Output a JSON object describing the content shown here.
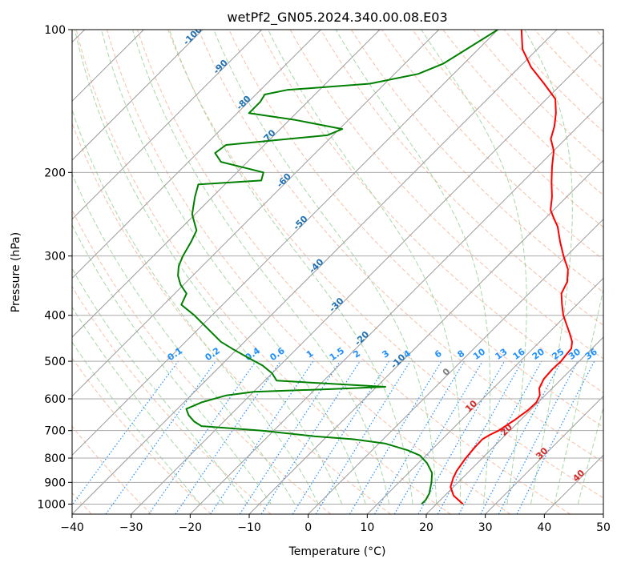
{
  "chart_data": {
    "type": "line",
    "subtype": "skew-t log-p diagram",
    "title": "wetPf2_GN05.2024.340.00.08.E03",
    "xlabel": "Temperature (°C)",
    "ylabel": "Pressure (hPa)",
    "xlim": [
      -40,
      50
    ],
    "ylim": [
      1050,
      100
    ],
    "y_scale": "log",
    "grid": true,
    "x_ticks": [
      -40,
      -30,
      -20,
      -10,
      0,
      10,
      20,
      30,
      40,
      50
    ],
    "y_ticks": [
      1000,
      900,
      800,
      700,
      600,
      500,
      400,
      300,
      200,
      100
    ],
    "colors": {
      "temperature": "#ff0000",
      "dewpoint": "#008000",
      "dry_adiabats": "#f4a582",
      "moist_adiabats": "#98d198",
      "mixing_ratio": "#1e90ff",
      "isotherms": "#9a9a9a",
      "isobars": "#a9a9a9",
      "isotherm_labels": "#1f6fb4",
      "mixing_ratio_labels": "#1e90ff",
      "zero_label": "#7f7f7f",
      "warm_labels": "#d62728"
    },
    "series": [
      {
        "name": "",
        "role": "temperature",
        "color": "#ff0000",
        "points": [
          {
            "p": 1000,
            "t": 24.5
          },
          {
            "p": 960,
            "t": 21.5
          },
          {
            "p": 920,
            "t": 19.5
          },
          {
            "p": 880,
            "t": 18.4
          },
          {
            "p": 850,
            "t": 17.8
          },
          {
            "p": 800,
            "t": 17.2
          },
          {
            "p": 760,
            "t": 16.9
          },
          {
            "p": 730,
            "t": 16.8
          },
          {
            "p": 715,
            "t": 17.3
          },
          {
            "p": 700,
            "t": 18.1
          },
          {
            "p": 680,
            "t": 18.6
          },
          {
            "p": 665,
            "t": 19.0
          },
          {
            "p": 650,
            "t": 19.3
          },
          {
            "p": 635,
            "t": 19.6
          },
          {
            "p": 610,
            "t": 19.7
          },
          {
            "p": 590,
            "t": 19.1
          },
          {
            "p": 570,
            "t": 17.8
          },
          {
            "p": 545,
            "t": 17.0
          },
          {
            "p": 520,
            "t": 16.8
          },
          {
            "p": 500,
            "t": 16.9
          },
          {
            "p": 485,
            "t": 16.7
          },
          {
            "p": 470,
            "t": 16.5
          },
          {
            "p": 455,
            "t": 15.5
          },
          {
            "p": 440,
            "t": 14.0
          },
          {
            "p": 420,
            "t": 11.8
          },
          {
            "p": 400,
            "t": 9.5
          },
          {
            "p": 380,
            "t": 7.5
          },
          {
            "p": 360,
            "t": 5.5
          },
          {
            "p": 340,
            "t": 4.5
          },
          {
            "p": 320,
            "t": 2.5
          },
          {
            "p": 300,
            "t": -0.5
          },
          {
            "p": 280,
            "t": -3.5
          },
          {
            "p": 260,
            "t": -6.5
          },
          {
            "p": 250,
            "t": -8.5
          },
          {
            "p": 240,
            "t": -10.5
          },
          {
            "p": 225,
            "t": -12.5
          },
          {
            "p": 210,
            "t": -15.0
          },
          {
            "p": 195,
            "t": -17.5
          },
          {
            "p": 180,
            "t": -20.0
          },
          {
            "p": 170,
            "t": -22.5
          },
          {
            "p": 160,
            "t": -24.0
          },
          {
            "p": 150,
            "t": -26.0
          },
          {
            "p": 140,
            "t": -28.5
          },
          {
            "p": 130,
            "t": -33.0
          },
          {
            "p": 120,
            "t": -38.0
          },
          {
            "p": 110,
            "t": -42.5
          },
          {
            "p": 100,
            "t": -46.0
          }
        ]
      },
      {
        "name": "",
        "role": "dewpoint",
        "color": "#008000",
        "points": [
          {
            "p": 1000,
            "t": 17.5
          },
          {
            "p": 980,
            "t": 17.5
          },
          {
            "p": 950,
            "t": 17.0
          },
          {
            "p": 900,
            "t": 15.5
          },
          {
            "p": 860,
            "t": 14.0
          },
          {
            "p": 820,
            "t": 11.5
          },
          {
            "p": 790,
            "t": 9.0
          },
          {
            "p": 770,
            "t": 6.0
          },
          {
            "p": 755,
            "t": 3.0
          },
          {
            "p": 745,
            "t": 1.0
          },
          {
            "p": 730,
            "t": -5.0
          },
          {
            "p": 720,
            "t": -12.0
          },
          {
            "p": 700,
            "t": -22.0
          },
          {
            "p": 685,
            "t": -33.0
          },
          {
            "p": 670,
            "t": -35.0
          },
          {
            "p": 650,
            "t": -37.0
          },
          {
            "p": 630,
            "t": -38.5
          },
          {
            "p": 610,
            "t": -37.0
          },
          {
            "p": 590,
            "t": -34.0
          },
          {
            "p": 580,
            "t": -30.0
          },
          {
            "p": 572,
            "t": -17.0
          },
          {
            "p": 566,
            "t": -8.5
          },
          {
            "p": 557,
            "t": -19.0
          },
          {
            "p": 549,
            "t": -28.0
          },
          {
            "p": 530,
            "t": -30.0
          },
          {
            "p": 510,
            "t": -33.0
          },
          {
            "p": 490,
            "t": -37.0
          },
          {
            "p": 470,
            "t": -41.0
          },
          {
            "p": 455,
            "t": -44.0
          },
          {
            "p": 400,
            "t": -53.0
          },
          {
            "p": 380,
            "t": -57.0
          },
          {
            "p": 360,
            "t": -58.0
          },
          {
            "p": 345,
            "t": -60.5
          },
          {
            "p": 330,
            "t": -62.5
          },
          {
            "p": 315,
            "t": -64.0
          },
          {
            "p": 300,
            "t": -65.0
          },
          {
            "p": 280,
            "t": -66.0
          },
          {
            "p": 265,
            "t": -67.0
          },
          {
            "p": 245,
            "t": -70.5
          },
          {
            "p": 225,
            "t": -73.0
          },
          {
            "p": 212,
            "t": -74.5
          },
          {
            "p": 208,
            "t": -64.5
          },
          {
            "p": 200,
            "t": -65.5
          },
          {
            "p": 190,
            "t": -74.5
          },
          {
            "p": 182,
            "t": -77.0
          },
          {
            "p": 175,
            "t": -76.5
          },
          {
            "p": 167,
            "t": -61.0
          },
          {
            "p": 162,
            "t": -59.5
          },
          {
            "p": 155,
            "t": -69.0
          },
          {
            "p": 150,
            "t": -78.0
          },
          {
            "p": 142,
            "t": -78.0
          },
          {
            "p": 137,
            "t": -78.5
          },
          {
            "p": 134,
            "t": -75.5
          },
          {
            "p": 130,
            "t": -62.5
          },
          {
            "p": 124,
            "t": -56.0
          },
          {
            "p": 118,
            "t": -53.5
          },
          {
            "p": 110,
            "t": -52.0
          },
          {
            "p": 100,
            "t": -50.0
          }
        ]
      }
    ],
    "isotherm_labels": [
      -100,
      -90,
      -80,
      -70,
      -60,
      -50,
      -40,
      -30,
      -20,
      -10
    ],
    "mixing_ratio_labels": [
      "0.1",
      "0.2",
      "0.4",
      "0.6",
      "1",
      "1.5",
      "2",
      "3",
      "4",
      "6",
      "8",
      "10",
      "13",
      "16",
      "20",
      "25",
      "30",
      "36"
    ],
    "extra_labels": [
      "0",
      "10",
      "20",
      "30",
      "40"
    ]
  }
}
